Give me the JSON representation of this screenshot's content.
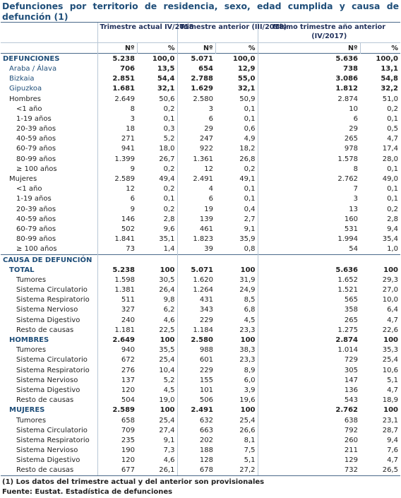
{
  "title": "Defunciones por territorio de residencia, sexo, edad cumplida y causa de defunción (1)",
  "headers": {
    "col1": "Trimestre actual IV/2018",
    "col2": "Trimestre anterior (III/2018)",
    "col3": "Mismo trimestre año anterior (IV/2017)",
    "num": "Nº",
    "pct": "%"
  },
  "sections": [
    {
      "label": "DEFUNCIONES",
      "style": "navybold",
      "values": [
        "5.238",
        "100,0",
        "5.071",
        "100,0",
        "5.636",
        "100,0"
      ]
    },
    {
      "label": "Araba / Álava",
      "style": "navybold-ind",
      "values": [
        "706",
        "13,5",
        "654",
        "12,9",
        "738",
        "13,1"
      ]
    },
    {
      "label": "Bizkaia",
      "style": "navybold-ind",
      "values": [
        "2.851",
        "54,4",
        "2.788",
        "55,0",
        "3.086",
        "54,8"
      ]
    },
    {
      "label": "Gipuzkoa",
      "style": "navybold-ind",
      "values": [
        "1.681",
        "32,1",
        "1.629",
        "32,1",
        "1.812",
        "32,2"
      ]
    },
    {
      "label": "Hombres",
      "style": "ind1",
      "values": [
        "2.649",
        "50,6",
        "2.580",
        "50,9",
        "2.874",
        "51,0"
      ]
    },
    {
      "label": "<1 año",
      "style": "ind2",
      "values": [
        "8",
        "0,2",
        "3",
        "0,1",
        "10",
        "0,2"
      ]
    },
    {
      "label": "1-19 años",
      "style": "ind2",
      "values": [
        "3",
        "0,1",
        "6",
        "0,1",
        "6",
        "0,1"
      ]
    },
    {
      "label": "20-39 años",
      "style": "ind2",
      "values": [
        "18",
        "0,3",
        "29",
        "0,6",
        "29",
        "0,5"
      ]
    },
    {
      "label": "40-59 años",
      "style": "ind2",
      "values": [
        "271",
        "5,2",
        "247",
        "4,9",
        "265",
        "4,7"
      ]
    },
    {
      "label": "60-79 años",
      "style": "ind2",
      "values": [
        "941",
        "18,0",
        "922",
        "18,2",
        "978",
        "17,4"
      ]
    },
    {
      "label": "80-99 años",
      "style": "ind2",
      "values": [
        "1.399",
        "26,7",
        "1.361",
        "26,8",
        "1.578",
        "28,0"
      ]
    },
    {
      "label": "≥ 100 años",
      "style": "ind2",
      "values": [
        "9",
        "0,2",
        "12",
        "0,2",
        "8",
        "0,1"
      ]
    },
    {
      "label": "Mujeres",
      "style": "ind1",
      "values": [
        "2.589",
        "49,4",
        "2.491",
        "49,1",
        "2.762",
        "49,0"
      ]
    },
    {
      "label": "<1 año",
      "style": "ind2",
      "values": [
        "12",
        "0,2",
        "4",
        "0,1",
        "7",
        "0,1"
      ]
    },
    {
      "label": "1-19 años",
      "style": "ind2",
      "values": [
        "6",
        "0,1",
        "6",
        "0,1",
        "3",
        "0,1"
      ]
    },
    {
      "label": "20-39 años",
      "style": "ind2",
      "values": [
        "9",
        "0,2",
        "19",
        "0,4",
        "13",
        "0,2"
      ]
    },
    {
      "label": "40-59 años",
      "style": "ind2",
      "values": [
        "146",
        "2,8",
        "139",
        "2,7",
        "160",
        "2,8"
      ]
    },
    {
      "label": "60-79 años",
      "style": "ind2",
      "values": [
        "502",
        "9,6",
        "461",
        "9,1",
        "531",
        "9,4"
      ]
    },
    {
      "label": "80-99 años",
      "style": "ind2",
      "values": [
        "1.841",
        "35,1",
        "1.823",
        "35,9",
        "1.994",
        "35,4"
      ]
    },
    {
      "label": "≥ 100 años",
      "style": "ind2",
      "values": [
        "73",
        "1,4",
        "39",
        "0,8",
        "54",
        "1,0"
      ]
    }
  ],
  "causes_title": "CAUSA DE DEFUNCIÓN",
  "causes": [
    {
      "label": "TOTAL",
      "style": "group",
      "values": [
        "5.238",
        "100",
        "5.071",
        "100",
        "5.636",
        "100"
      ]
    },
    {
      "label": "Tumores",
      "style": "ind2",
      "values": [
        "1.598",
        "30,5",
        "1.620",
        "31,9",
        "1.652",
        "29,3"
      ]
    },
    {
      "label": "Sistema Circulatorio",
      "style": "ind2",
      "values": [
        "1.381",
        "26,4",
        "1.264",
        "24,9",
        "1.521",
        "27,0"
      ]
    },
    {
      "label": "Sistema Respiratorio",
      "style": "ind2",
      "values": [
        "511",
        "9,8",
        "431",
        "8,5",
        "565",
        "10,0"
      ]
    },
    {
      "label": "Sistema Nervioso",
      "style": "ind2",
      "values": [
        "327",
        "6,2",
        "343",
        "6,8",
        "358",
        "6,4"
      ]
    },
    {
      "label": "Sistema Digestivo",
      "style": "ind2",
      "values": [
        "240",
        "4,6",
        "229",
        "4,5",
        "265",
        "4,7"
      ]
    },
    {
      "label": "Resto de causas",
      "style": "ind2",
      "values": [
        "1.181",
        "22,5",
        "1.184",
        "23,3",
        "1.275",
        "22,6"
      ]
    },
    {
      "label": "HOMBRES",
      "style": "group",
      "values": [
        "2.649",
        "100",
        "2.580",
        "100",
        "2.874",
        "100"
      ]
    },
    {
      "label": "Tumores",
      "style": "ind2",
      "values": [
        "940",
        "35,5",
        "988",
        "38,3",
        "1.014",
        "35,3"
      ]
    },
    {
      "label": "Sistema Circulatorio",
      "style": "ind2",
      "values": [
        "672",
        "25,4",
        "601",
        "23,3",
        "729",
        "25,4"
      ]
    },
    {
      "label": "Sistema Respiratorio",
      "style": "ind2",
      "values": [
        "276",
        "10,4",
        "229",
        "8,9",
        "305",
        "10,6"
      ]
    },
    {
      "label": "Sistema Nervioso",
      "style": "ind2",
      "values": [
        "137",
        "5,2",
        "155",
        "6,0",
        "147",
        "5,1"
      ]
    },
    {
      "label": "Sistema Digestivo",
      "style": "ind2",
      "values": [
        "120",
        "4,5",
        "101",
        "3,9",
        "136",
        "4,7"
      ]
    },
    {
      "label": "Resto de causas",
      "style": "ind2",
      "values": [
        "504",
        "19,0",
        "506",
        "19,6",
        "543",
        "18,9"
      ]
    },
    {
      "label": "MUJERES",
      "style": "group",
      "values": [
        "2.589",
        "100",
        "2.491",
        "100",
        "2.762",
        "100"
      ]
    },
    {
      "label": "Tumores",
      "style": "ind2",
      "values": [
        "658",
        "25,4",
        "632",
        "25,4",
        "638",
        "23,1"
      ]
    },
    {
      "label": "Sistema Circulatorio",
      "style": "ind2",
      "values": [
        "709",
        "27,4",
        "663",
        "26,6",
        "792",
        "28,7"
      ]
    },
    {
      "label": "Sistema Respiratorio",
      "style": "ind2",
      "values": [
        "235",
        "9,1",
        "202",
        "8,1",
        "260",
        "9,4"
      ]
    },
    {
      "label": "Sistema Nervioso",
      "style": "ind2",
      "values": [
        "190",
        "7,3",
        "188",
        "7,5",
        "211",
        "7,6"
      ]
    },
    {
      "label": "Sistema Digestivo",
      "style": "ind2",
      "values": [
        "120",
        "4,6",
        "128",
        "5,1",
        "129",
        "4,7"
      ]
    },
    {
      "label": "Resto de causas",
      "style": "ind2",
      "values": [
        "677",
        "26,1",
        "678",
        "27,2",
        "732",
        "26,5"
      ]
    }
  ],
  "footnotes": {
    "note1": "(1) Los datos del trimestre actual y del anterior son provisionales",
    "source": "Fuente: Eustat. Estadística de defunciones"
  }
}
